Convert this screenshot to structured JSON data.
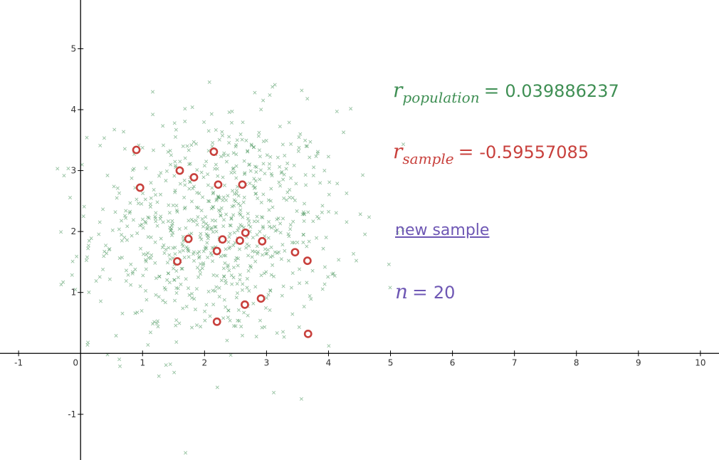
{
  "colors": {
    "population": "#3f8f54",
    "sample": "#c8403c",
    "link": "#6e57b4",
    "axis": "#000000"
  },
  "stats": {
    "r_symbol": "r",
    "population_subscript": "population",
    "population_eq": "=",
    "population_value": "0.039886237",
    "sample_subscript": "sample",
    "sample_eq": "=",
    "sample_value": "-0.59557085",
    "new_sample_label": "new sample",
    "n_symbol": "n",
    "n_eq": "=",
    "n_value": "20"
  },
  "chart_data": {
    "type": "scatter",
    "xlim": [
      -1.3,
      10.3
    ],
    "ylim": [
      -1.75,
      5.8
    ],
    "x_ticks": [
      -1,
      0,
      1,
      2,
      3,
      4,
      5,
      6,
      7,
      8,
      9,
      10
    ],
    "x_tick_labels": [
      "-1",
      "0",
      "1",
      "2",
      "3",
      "4",
      "5",
      "6",
      "7",
      "8",
      "9",
      "10"
    ],
    "y_ticks": [
      -1,
      1,
      2,
      3,
      4,
      5
    ],
    "y_tick_labels": [
      "-1",
      "1",
      "2",
      "3",
      "4",
      "5"
    ],
    "grid": false,
    "population": {
      "marker": "x",
      "n_points": 800,
      "mean": [
        2.2,
        2.05
      ],
      "sd": [
        1.0,
        0.95
      ],
      "correlation": 0.039886237,
      "seed": 12345
    },
    "sample": {
      "marker": "open-circle",
      "points": [
        [
          0.9,
          3.34
        ],
        [
          2.15,
          3.31
        ],
        [
          1.6,
          3.0
        ],
        [
          1.83,
          2.89
        ],
        [
          0.96,
          2.72
        ],
        [
          2.22,
          2.77
        ],
        [
          2.61,
          2.77
        ],
        [
          1.74,
          1.88
        ],
        [
          2.29,
          1.87
        ],
        [
          2.66,
          1.98
        ],
        [
          2.57,
          1.85
        ],
        [
          2.93,
          1.84
        ],
        [
          2.2,
          1.68
        ],
        [
          3.46,
          1.66
        ],
        [
          1.56,
          1.51
        ],
        [
          3.66,
          1.52
        ],
        [
          2.91,
          0.9
        ],
        [
          2.65,
          0.8
        ],
        [
          2.2,
          0.52
        ],
        [
          3.67,
          0.32
        ]
      ]
    }
  }
}
